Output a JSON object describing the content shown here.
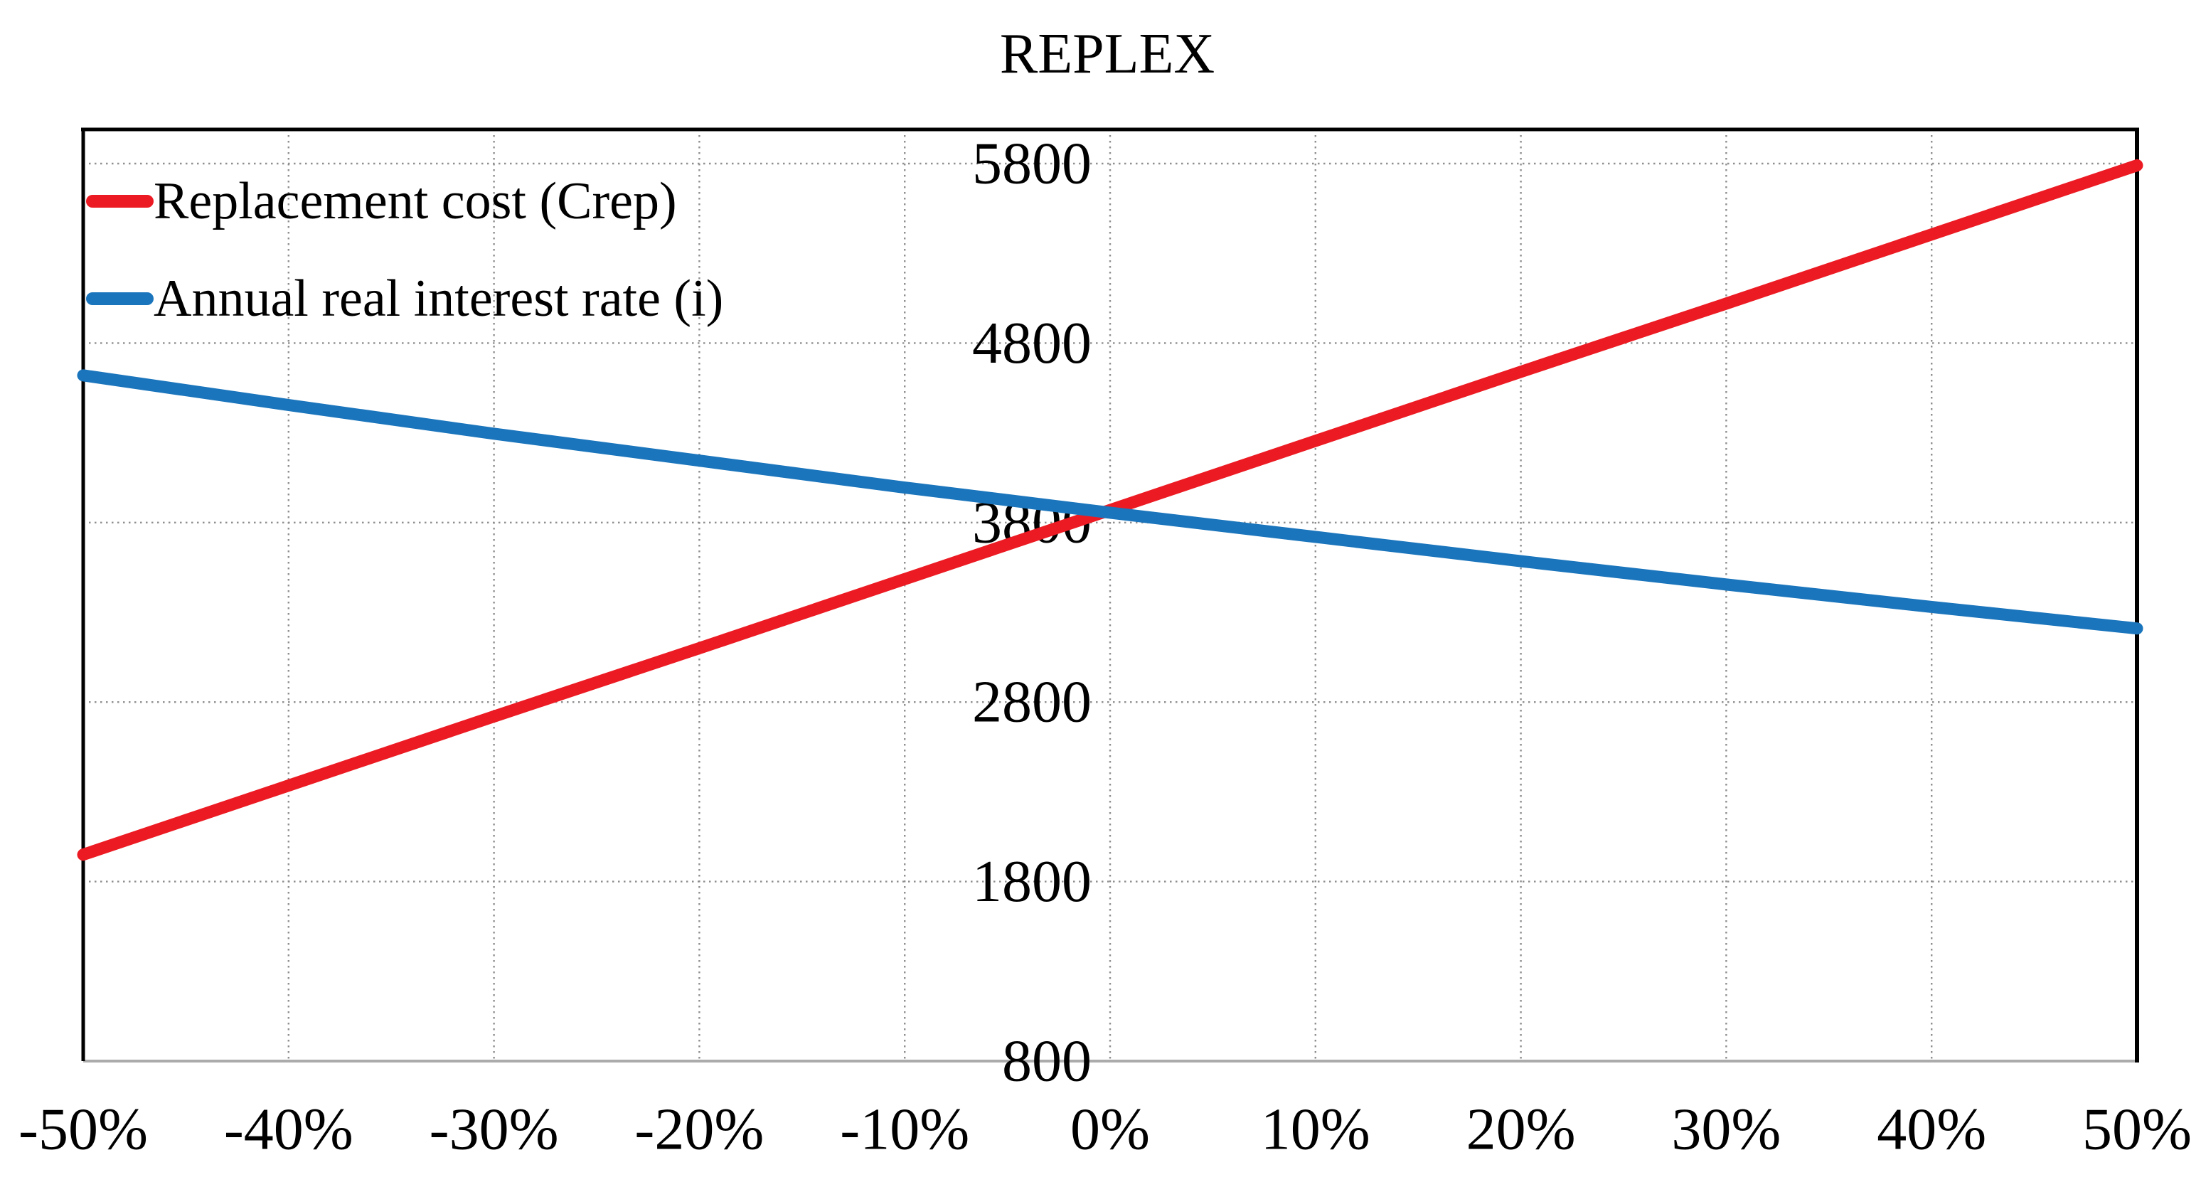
{
  "chart_data": {
    "type": "line",
    "title": "REPLEX",
    "xlabel": "",
    "ylabel": "",
    "x_tick_labels": [
      "-50%",
      "-40%",
      "-30%",
      "-20%",
      "-10%",
      "0%",
      "10%",
      "20%",
      "30%",
      "40%",
      "50%"
    ],
    "x_values_percent": [
      -50,
      -40,
      -30,
      -20,
      -10,
      0,
      10,
      20,
      30,
      40,
      50
    ],
    "y_ticks": [
      800,
      1800,
      2800,
      3800,
      4800,
      5800
    ],
    "y_tick_labels": [
      "800",
      "1800",
      "2800",
      "3800",
      "4800",
      "5800"
    ],
    "ylim": [
      800,
      5800
    ],
    "grid": true,
    "gridline_style": "dotted",
    "legend_position": "top-left-inside",
    "y_labels_position": "inside-center-left-of-0%",
    "series": [
      {
        "name": "Replacement cost (Crep)",
        "color": "#EC1B23",
        "values": [
          1950,
          2335,
          2720,
          3100,
          3485,
          3870,
          4255,
          4640,
          5020,
          5405,
          5790
        ]
      },
      {
        "name": "Annual real interest rate (i)",
        "color": "#1B75BC",
        "values": [
          4620,
          4455,
          4295,
          4145,
          3995,
          3855,
          3720,
          3585,
          3455,
          3330,
          3210
        ]
      }
    ],
    "colors": {
      "gridline": "#8F8F8F",
      "frame": "#000000",
      "x_axis_line": "#ABABAB",
      "text": "#000000",
      "background": "#FFFFFF"
    }
  }
}
